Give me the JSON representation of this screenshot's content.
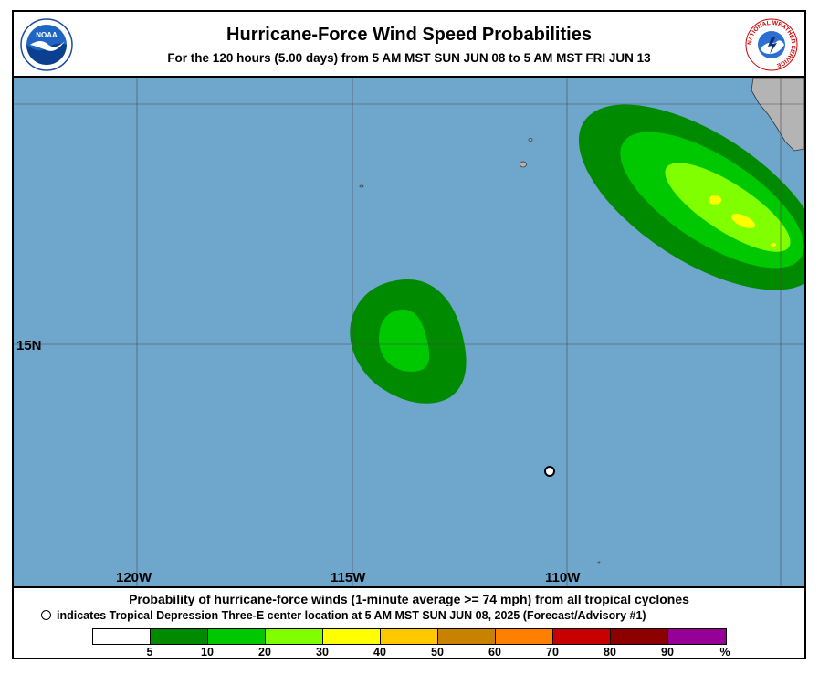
{
  "title": "Hurricane-Force Wind Speed Probabilities",
  "subtitle": "For the 120 hours (5.00 days) from 5 AM MST SUN JUN 08 to 5 AM MST FRI JUN 13",
  "logos": {
    "noaa": "noaa-logo",
    "noaa_text": "NOAA",
    "nws": "nws-logo",
    "nws_text": "NATIONAL WEATHER SERVICE"
  },
  "map": {
    "ocean_color": "#6fa6cc",
    "land_color": "#b4b4b4",
    "longitude_labels": [
      "120W",
      "115W",
      "110W"
    ],
    "latitude_labels": [
      "15N"
    ],
    "storm_center_marker": "open-circle"
  },
  "probability_areas": [
    {
      "name": "eastern-area",
      "levels": [
        "5-10",
        "10-20",
        "20-30",
        "30-40"
      ]
    },
    {
      "name": "central-area",
      "levels": [
        "5-10",
        "10-20"
      ]
    }
  ],
  "footer": {
    "line1": "Probability of hurricane-force winds (1-minute average >= 74 mph) from all tropical cyclones",
    "line2": "indicates Tropical Depression Three-E center location at 5 AM MST SUN JUN 08, 2025 (Forecast/Advisory #1)"
  },
  "legend": {
    "colors": [
      "#ffffff",
      "#008a00",
      "#00c800",
      "#7fff00",
      "#ffff00",
      "#ffc800",
      "#c88200",
      "#ff7f00",
      "#c80000",
      "#8c0000",
      "#960096"
    ],
    "ticks": [
      "5",
      "10",
      "20",
      "30",
      "40",
      "50",
      "60",
      "70",
      "80",
      "90",
      "%"
    ]
  }
}
